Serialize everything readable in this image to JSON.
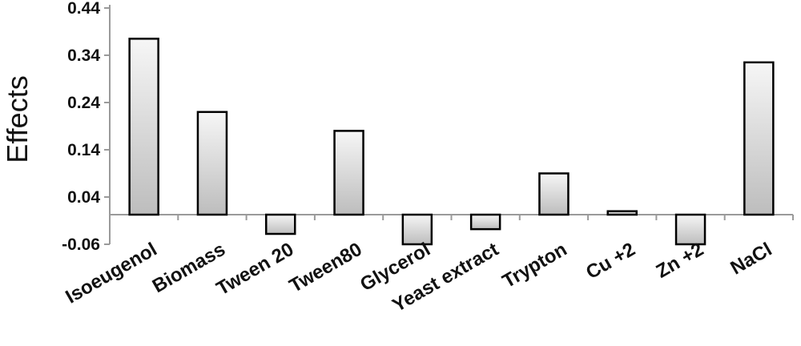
{
  "chart_data": {
    "type": "bar",
    "title": "",
    "xlabel": "",
    "ylabel": "Effects",
    "ylim": [
      -0.06,
      0.44
    ],
    "yticks": [
      -0.06,
      0.04,
      0.14,
      0.24,
      0.34,
      0.44
    ],
    "ytick_labels": [
      "-0.06",
      "0.04",
      "0.14",
      "0.24",
      "0.34",
      "0.44"
    ],
    "categories": [
      "Isoeugenol",
      "Biomass",
      "Tween 20",
      "Tween80",
      "Glycerol",
      "Yeast extract",
      "Trypton",
      "Cu +2",
      "Zn +2",
      "NaCl"
    ],
    "values": [
      0.375,
      0.22,
      -0.038,
      0.18,
      -0.06,
      -0.028,
      0.09,
      0.01,
      -0.06,
      0.325
    ],
    "grid": false,
    "legend": "none",
    "colors": {
      "bar_light": "#f6f6f6",
      "bar_dark": "#bdbdbd",
      "bar_edge": "#000000",
      "axis": "#9a9a9a"
    }
  }
}
